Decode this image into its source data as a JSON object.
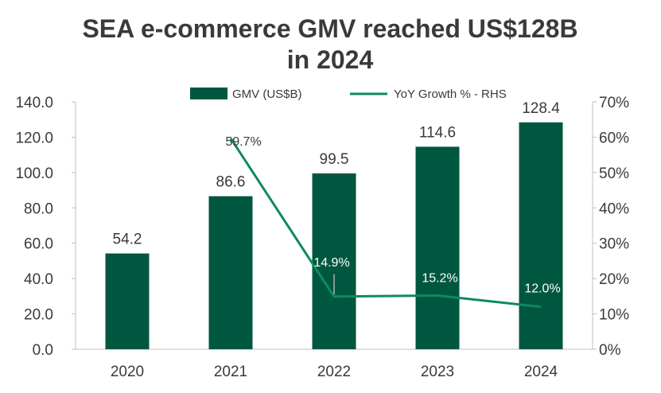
{
  "chart_data": {
    "type": "bar",
    "title_lines": [
      "SEA e-commerce GMV reached US$128B",
      "in 2024"
    ],
    "categories": [
      "2020",
      "2021",
      "2022",
      "2023",
      "2024"
    ],
    "series": [
      {
        "name": "GMV (US$B)",
        "type": "bar",
        "axis": "left",
        "values": [
          54.2,
          86.6,
          99.5,
          114.6,
          128.4
        ],
        "labels": [
          "54.2",
          "86.6",
          "99.5",
          "114.6",
          "128.4"
        ]
      },
      {
        "name": "YoY Growth % - RHS",
        "type": "line",
        "axis": "right",
        "values": [
          null,
          59.7,
          14.9,
          15.2,
          12.0
        ],
        "labels": [
          "",
          "59.7%",
          "14.9%",
          "15.2%",
          "12.0%"
        ]
      }
    ],
    "y_left": {
      "ylim": [
        0,
        140
      ],
      "ticks": [
        "0.0",
        "20.0",
        "40.0",
        "60.0",
        "80.0",
        "100.0",
        "120.0",
        "140.0"
      ]
    },
    "y_right": {
      "ylim": [
        0,
        70
      ],
      "ticks": [
        "0%",
        "10%",
        "20%",
        "30%",
        "40%",
        "50%",
        "60%",
        "70%"
      ]
    },
    "legend_position": "top",
    "grid": false,
    "colors": {
      "bar": "#00573f",
      "line": "#0e8a5f",
      "axis": "#bfbfbf",
      "text": "#3a3a3a"
    }
  }
}
